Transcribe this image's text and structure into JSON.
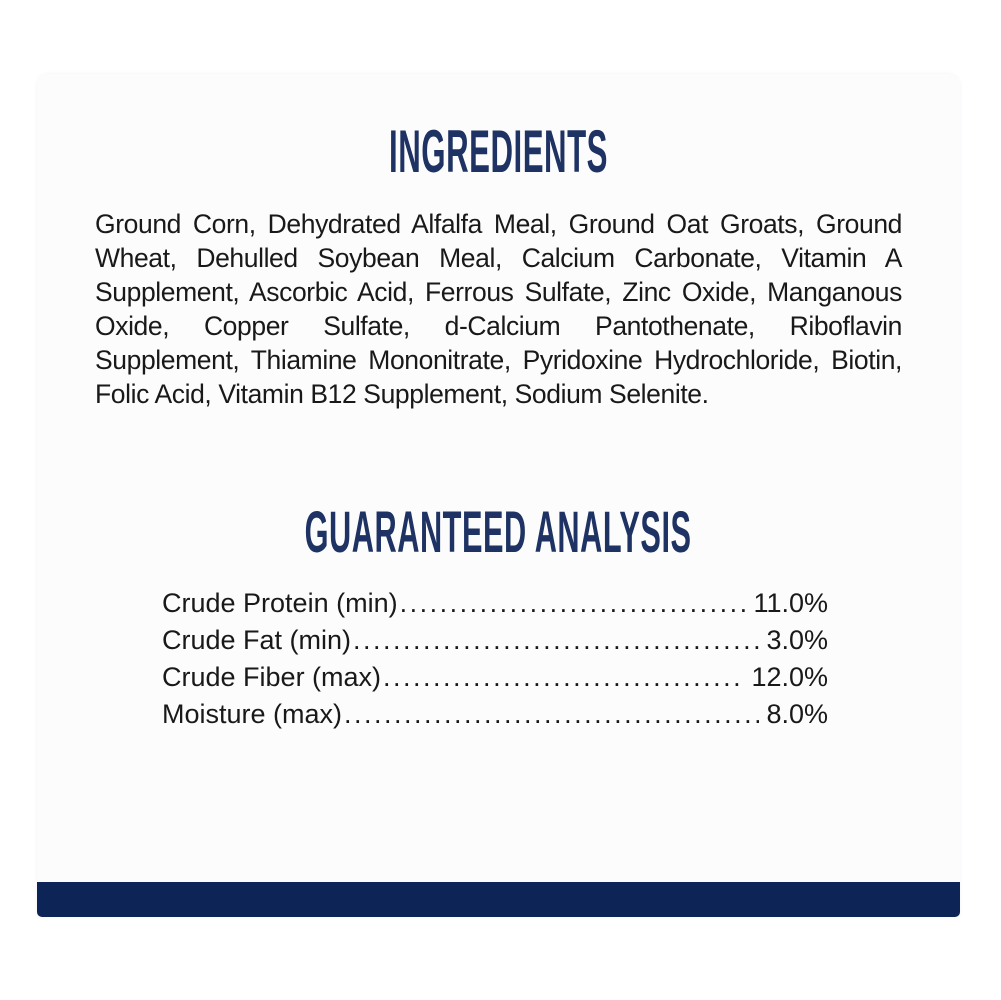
{
  "colors": {
    "page": "#ffffff",
    "card": "#fcfcfc",
    "heading": "#1e3263",
    "text": "#191919",
    "bar": "#0d2456"
  },
  "ingredients": {
    "title": "INGREDIENTS",
    "text": "Ground Corn, Dehydrated Alfalfa Meal, Ground Oat Groats, Ground Wheat, Dehulled Soybean Meal, Calcium Carbonate, Vitamin A Supplement, Ascorbic Acid, Ferrous Sulfate, Zinc Oxide, Manganous Oxide, Copper Sulfate, d-Calcium Pantothenate, Riboflavin Supplement, Thiamine Mononitrate, Pyridoxine Hydrochloride, Biotin, Folic Acid, Vitamin B12 Supplement, Sodium Selenite."
  },
  "guaranteed_analysis": {
    "title": "GUARANTEED ANALYSIS",
    "leader_dots": "........................................................................................................................................",
    "rows": [
      {
        "label": "Crude Protein (min)",
        "value": "11.0%"
      },
      {
        "label": "Crude Fat (min)",
        "value": "3.0%"
      },
      {
        "label": "Crude Fiber (max)",
        "value": "12.0%"
      },
      {
        "label": "Moisture (max)",
        "value": "8.0%"
      }
    ]
  }
}
